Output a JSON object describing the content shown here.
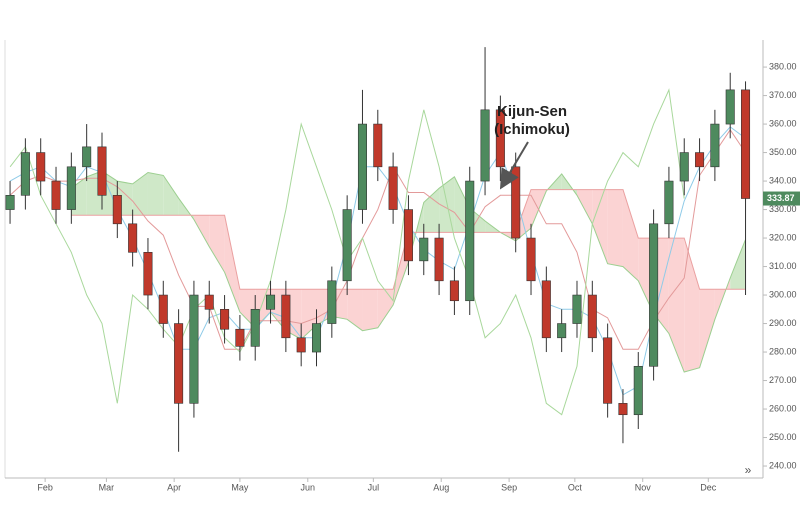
{
  "chart_data": {
    "type": "candlestick",
    "categories": [
      null,
      null,
      null,
      null,
      null,
      null,
      null,
      null,
      null,
      null,
      null,
      null,
      null,
      null,
      null,
      null,
      null,
      null,
      null,
      null,
      null,
      null,
      null,
      null,
      null,
      null,
      null,
      null,
      null,
      null,
      null,
      null,
      null,
      null,
      null,
      null,
      null,
      null,
      null,
      null,
      null,
      null,
      null,
      null,
      null,
      null,
      null,
      null,
      null
    ],
    "open": [
      330,
      335,
      350,
      340,
      330,
      345,
      352,
      335,
      325,
      315,
      300,
      290,
      262,
      300,
      295,
      288,
      282,
      295,
      300,
      285,
      280,
      290,
      305,
      330,
      360,
      345,
      330,
      312,
      320,
      305,
      298,
      340,
      365,
      345,
      320,
      305,
      285,
      290,
      300,
      285,
      262,
      258,
      275,
      325,
      340,
      350,
      345,
      360,
      372
    ],
    "high": [
      340,
      355,
      355,
      345,
      350,
      360,
      357,
      340,
      330,
      320,
      305,
      295,
      305,
      305,
      300,
      293,
      300,
      305,
      305,
      290,
      295,
      310,
      335,
      372,
      365,
      350,
      335,
      325,
      325,
      310,
      345,
      387,
      370,
      350,
      325,
      310,
      295,
      305,
      305,
      290,
      267,
      280,
      330,
      345,
      355,
      355,
      365,
      378,
      375
    ],
    "low": [
      325,
      330,
      335,
      325,
      325,
      340,
      330,
      320,
      310,
      295,
      285,
      245,
      257,
      290,
      283,
      277,
      277,
      290,
      280,
      275,
      275,
      285,
      300,
      325,
      340,
      325,
      307,
      307,
      300,
      293,
      293,
      335,
      340,
      315,
      300,
      280,
      280,
      285,
      280,
      257,
      248,
      253,
      270,
      320,
      335,
      340,
      340,
      355,
      300
    ],
    "close": [
      335,
      350,
      340,
      330,
      345,
      352,
      335,
      325,
      315,
      300,
      290,
      262,
      300,
      295,
      288,
      282,
      295,
      300,
      285,
      280,
      290,
      305,
      330,
      360,
      345,
      330,
      312,
      320,
      305,
      298,
      340,
      365,
      345,
      320,
      305,
      285,
      290,
      300,
      285,
      262,
      258,
      275,
      325,
      340,
      350,
      345,
      360,
      372,
      333.87
    ],
    "up_color": "#4e8a5e",
    "down_color": "#c0392b",
    "lines": [
      {
        "color": "#8fcbe8",
        "values": [
          340,
          343,
          345,
          340,
          338,
          345,
          343,
          330,
          320,
          308,
          295,
          281,
          281,
          292,
          294,
          288,
          288,
          294,
          292,
          285,
          285,
          298,
          318,
          345,
          345,
          338,
          325,
          316,
          312,
          309,
          325,
          342,
          350,
          335,
          315,
          297,
          295,
          295,
          292,
          281,
          265,
          268,
          292,
          313,
          333,
          345,
          353,
          359,
          355
        ]
      },
      {
        "color": "#e39a9a",
        "values": [
          335,
          340,
          342,
          340,
          340,
          341,
          341,
          338,
          333,
          326,
          321,
          307,
          296,
          296,
          281,
          281,
          291,
          291,
          291,
          290,
          292,
          295,
          305,
          320,
          330,
          345,
          336,
          336,
          332,
          329,
          322,
          331,
          335,
          335,
          335,
          325,
          325,
          315,
          295,
          292,
          281,
          281,
          291,
          299,
          306,
          342,
          350,
          358,
          350
        ]
      },
      {
        "color": "#a9d89c",
        "values": [
          345,
          352,
          335,
          325,
          315,
          300,
          290,
          262,
          300,
          295,
          288,
          282,
          295,
          300,
          285,
          280,
          290,
          305,
          330,
          360,
          345,
          330,
          312,
          320,
          305,
          298,
          340,
          365,
          345,
          320,
          305,
          285,
          290,
          300,
          285,
          262,
          258,
          275,
          325,
          340,
          350,
          345,
          360,
          372,
          333.87,
          null,
          null,
          null,
          null
        ]
      }
    ],
    "cloud": {
      "span_a": [
        null,
        null,
        null,
        null,
        337.5,
        341.5,
        343.5,
        340,
        339,
        343,
        342,
        334,
        326.5,
        317,
        308,
        294,
        288.5,
        294,
        287.5,
        284.5,
        289.5,
        292.5,
        291.5,
        287.5,
        288.5,
        296.5,
        311.5,
        332.5,
        337.5,
        341.5,
        330.5,
        326,
        322,
        319,
        323.5,
        336.5,
        342.5,
        335,
        325,
        311,
        310,
        305,
        293.5,
        286.5,
        273,
        274.5,
        291.5,
        306,
        319.5
      ],
      "span_b": [
        null,
        null,
        null,
        null,
        328,
        328,
        328,
        328,
        328,
        328,
        328,
        328,
        328,
        328,
        328,
        302,
        302,
        302,
        302,
        302,
        302,
        302,
        302,
        302,
        302,
        302,
        322,
        322,
        322,
        322,
        322,
        322,
        322,
        322,
        337,
        337,
        337,
        337,
        337,
        337,
        337,
        320,
        320,
        320,
        320,
        302,
        302,
        302,
        302
      ],
      "up_color": "#cfe8c8",
      "down_color": "#fbd3d3",
      "up_edge": "#9ccf90",
      "down_edge": "#eaa0a0"
    },
    "ylim": [
      235.8,
      389.5
    ],
    "yticks": [
      {
        "value": 240,
        "label": "240.00"
      },
      {
        "value": 250,
        "label": "250.00"
      },
      {
        "value": 260,
        "label": "260.00"
      },
      {
        "value": 270,
        "label": "270.00"
      },
      {
        "value": 280,
        "label": "280.00"
      },
      {
        "value": 290,
        "label": "290.00"
      },
      {
        "value": 300,
        "label": "300.00"
      },
      {
        "value": 310,
        "label": "310.00"
      },
      {
        "value": 320,
        "label": "320.00"
      },
      {
        "value": 330,
        "label": "330.00"
      },
      {
        "value": 340,
        "label": "340.00"
      },
      {
        "value": 350,
        "label": "350.00"
      },
      {
        "value": 360,
        "label": "360.00"
      },
      {
        "value": 370,
        "label": "370.00"
      },
      {
        "value": 380,
        "label": "380.00"
      }
    ],
    "xlim": [
      -0.33,
      49.14
    ],
    "xticks": [
      {
        "value": 2.29,
        "label": "Feb"
      },
      {
        "value": 6.29,
        "label": "Mar"
      },
      {
        "value": 10.71,
        "label": "Apr"
      },
      {
        "value": 15,
        "label": "May"
      },
      {
        "value": 19.43,
        "label": "Jun"
      },
      {
        "value": 23.71,
        "label": "Jul"
      },
      {
        "value": 28.14,
        "label": "Aug"
      },
      {
        "value": 32.57,
        "label": "Sep"
      },
      {
        "value": 36.86,
        "label": "Oct"
      },
      {
        "value": 41.29,
        "label": "Nov"
      },
      {
        "value": 45.57,
        "label": "Dec"
      }
    ],
    "price_tag_color": "#4e8a5e",
    "annotation": [
      "Kijun-Sen",
      "(Ichimoku)"
    ],
    "scroll_icon": "»"
  }
}
